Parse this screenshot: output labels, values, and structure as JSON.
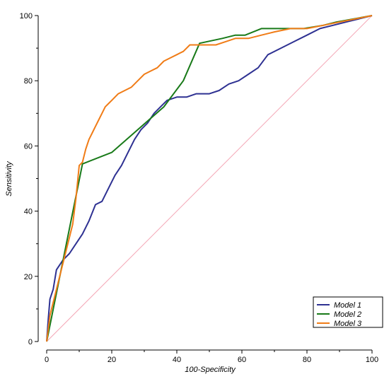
{
  "chart_data": {
    "type": "line",
    "xlabel": "100-Specificity",
    "ylabel": "Sensitivity",
    "xlim": [
      0,
      100
    ],
    "ylim": [
      0,
      100
    ],
    "x_ticks": [
      0,
      20,
      40,
      60,
      80,
      100
    ],
    "y_ticks": [
      0,
      20,
      40,
      60,
      80,
      100
    ],
    "grid": false,
    "legend_position": "bottom-right",
    "reference_line": {
      "points": [
        [
          0,
          0
        ],
        [
          100,
          100
        ]
      ],
      "color": "#f4a6b5"
    },
    "series": [
      {
        "name": "Model 1",
        "color": "#2e3192",
        "points": [
          [
            0,
            0
          ],
          [
            0.5,
            7
          ],
          [
            1,
            13
          ],
          [
            2,
            16
          ],
          [
            3,
            22
          ],
          [
            5,
            25
          ],
          [
            7,
            27
          ],
          [
            9,
            30
          ],
          [
            11,
            33
          ],
          [
            13,
            37
          ],
          [
            15,
            42
          ],
          [
            17,
            43
          ],
          [
            19,
            47
          ],
          [
            21,
            51
          ],
          [
            23,
            54
          ],
          [
            25,
            58
          ],
          [
            27,
            62
          ],
          [
            29,
            65
          ],
          [
            31,
            67
          ],
          [
            33,
            70
          ],
          [
            35,
            72
          ],
          [
            37,
            74
          ],
          [
            40,
            75
          ],
          [
            43,
            75
          ],
          [
            46,
            76
          ],
          [
            50,
            76
          ],
          [
            53,
            77
          ],
          [
            56,
            79
          ],
          [
            59,
            80
          ],
          [
            62,
            82
          ],
          [
            65,
            84
          ],
          [
            68,
            88
          ],
          [
            72,
            90
          ],
          [
            76,
            92
          ],
          [
            80,
            94
          ],
          [
            84,
            96
          ],
          [
            88,
            97
          ],
          [
            92,
            98
          ],
          [
            96,
            99
          ],
          [
            100,
            100
          ]
        ]
      },
      {
        "name": "Model 2",
        "color": "#197a19",
        "points": [
          [
            0,
            0
          ],
          [
            11,
            54.5
          ],
          [
            20,
            58
          ],
          [
            36,
            72
          ],
          [
            42,
            80
          ],
          [
            47,
            91.5
          ],
          [
            54,
            93
          ],
          [
            58,
            94
          ],
          [
            61,
            94
          ],
          [
            66,
            96
          ],
          [
            79,
            96
          ],
          [
            85,
            97
          ],
          [
            89,
            98
          ],
          [
            100,
            100
          ]
        ]
      },
      {
        "name": "Model 3",
        "color": "#f07c17",
        "points": [
          [
            0,
            0
          ],
          [
            1,
            8
          ],
          [
            2,
            12
          ],
          [
            3,
            16
          ],
          [
            5,
            24
          ],
          [
            7,
            32
          ],
          [
            8,
            36
          ],
          [
            9,
            44
          ],
          [
            10,
            54
          ],
          [
            11,
            55
          ],
          [
            12,
            59
          ],
          [
            13,
            62
          ],
          [
            14,
            64
          ],
          [
            15,
            66
          ],
          [
            16,
            68
          ],
          [
            17,
            70
          ],
          [
            18,
            72
          ],
          [
            19,
            73
          ],
          [
            20,
            74
          ],
          [
            22,
            76
          ],
          [
            24,
            77
          ],
          [
            26,
            78
          ],
          [
            28,
            80
          ],
          [
            30,
            82
          ],
          [
            32,
            83
          ],
          [
            34,
            84
          ],
          [
            36,
            86
          ],
          [
            38,
            87
          ],
          [
            40,
            88
          ],
          [
            42,
            89
          ],
          [
            44,
            91
          ],
          [
            46,
            91
          ],
          [
            48,
            91
          ],
          [
            50,
            91
          ],
          [
            52,
            91
          ],
          [
            55,
            92
          ],
          [
            58,
            93
          ],
          [
            62,
            93
          ],
          [
            66,
            94
          ],
          [
            70,
            95
          ],
          [
            75,
            96
          ],
          [
            80,
            96
          ],
          [
            85,
            97
          ],
          [
            90,
            98
          ],
          [
            95,
            99
          ],
          [
            100,
            100
          ]
        ]
      }
    ]
  }
}
